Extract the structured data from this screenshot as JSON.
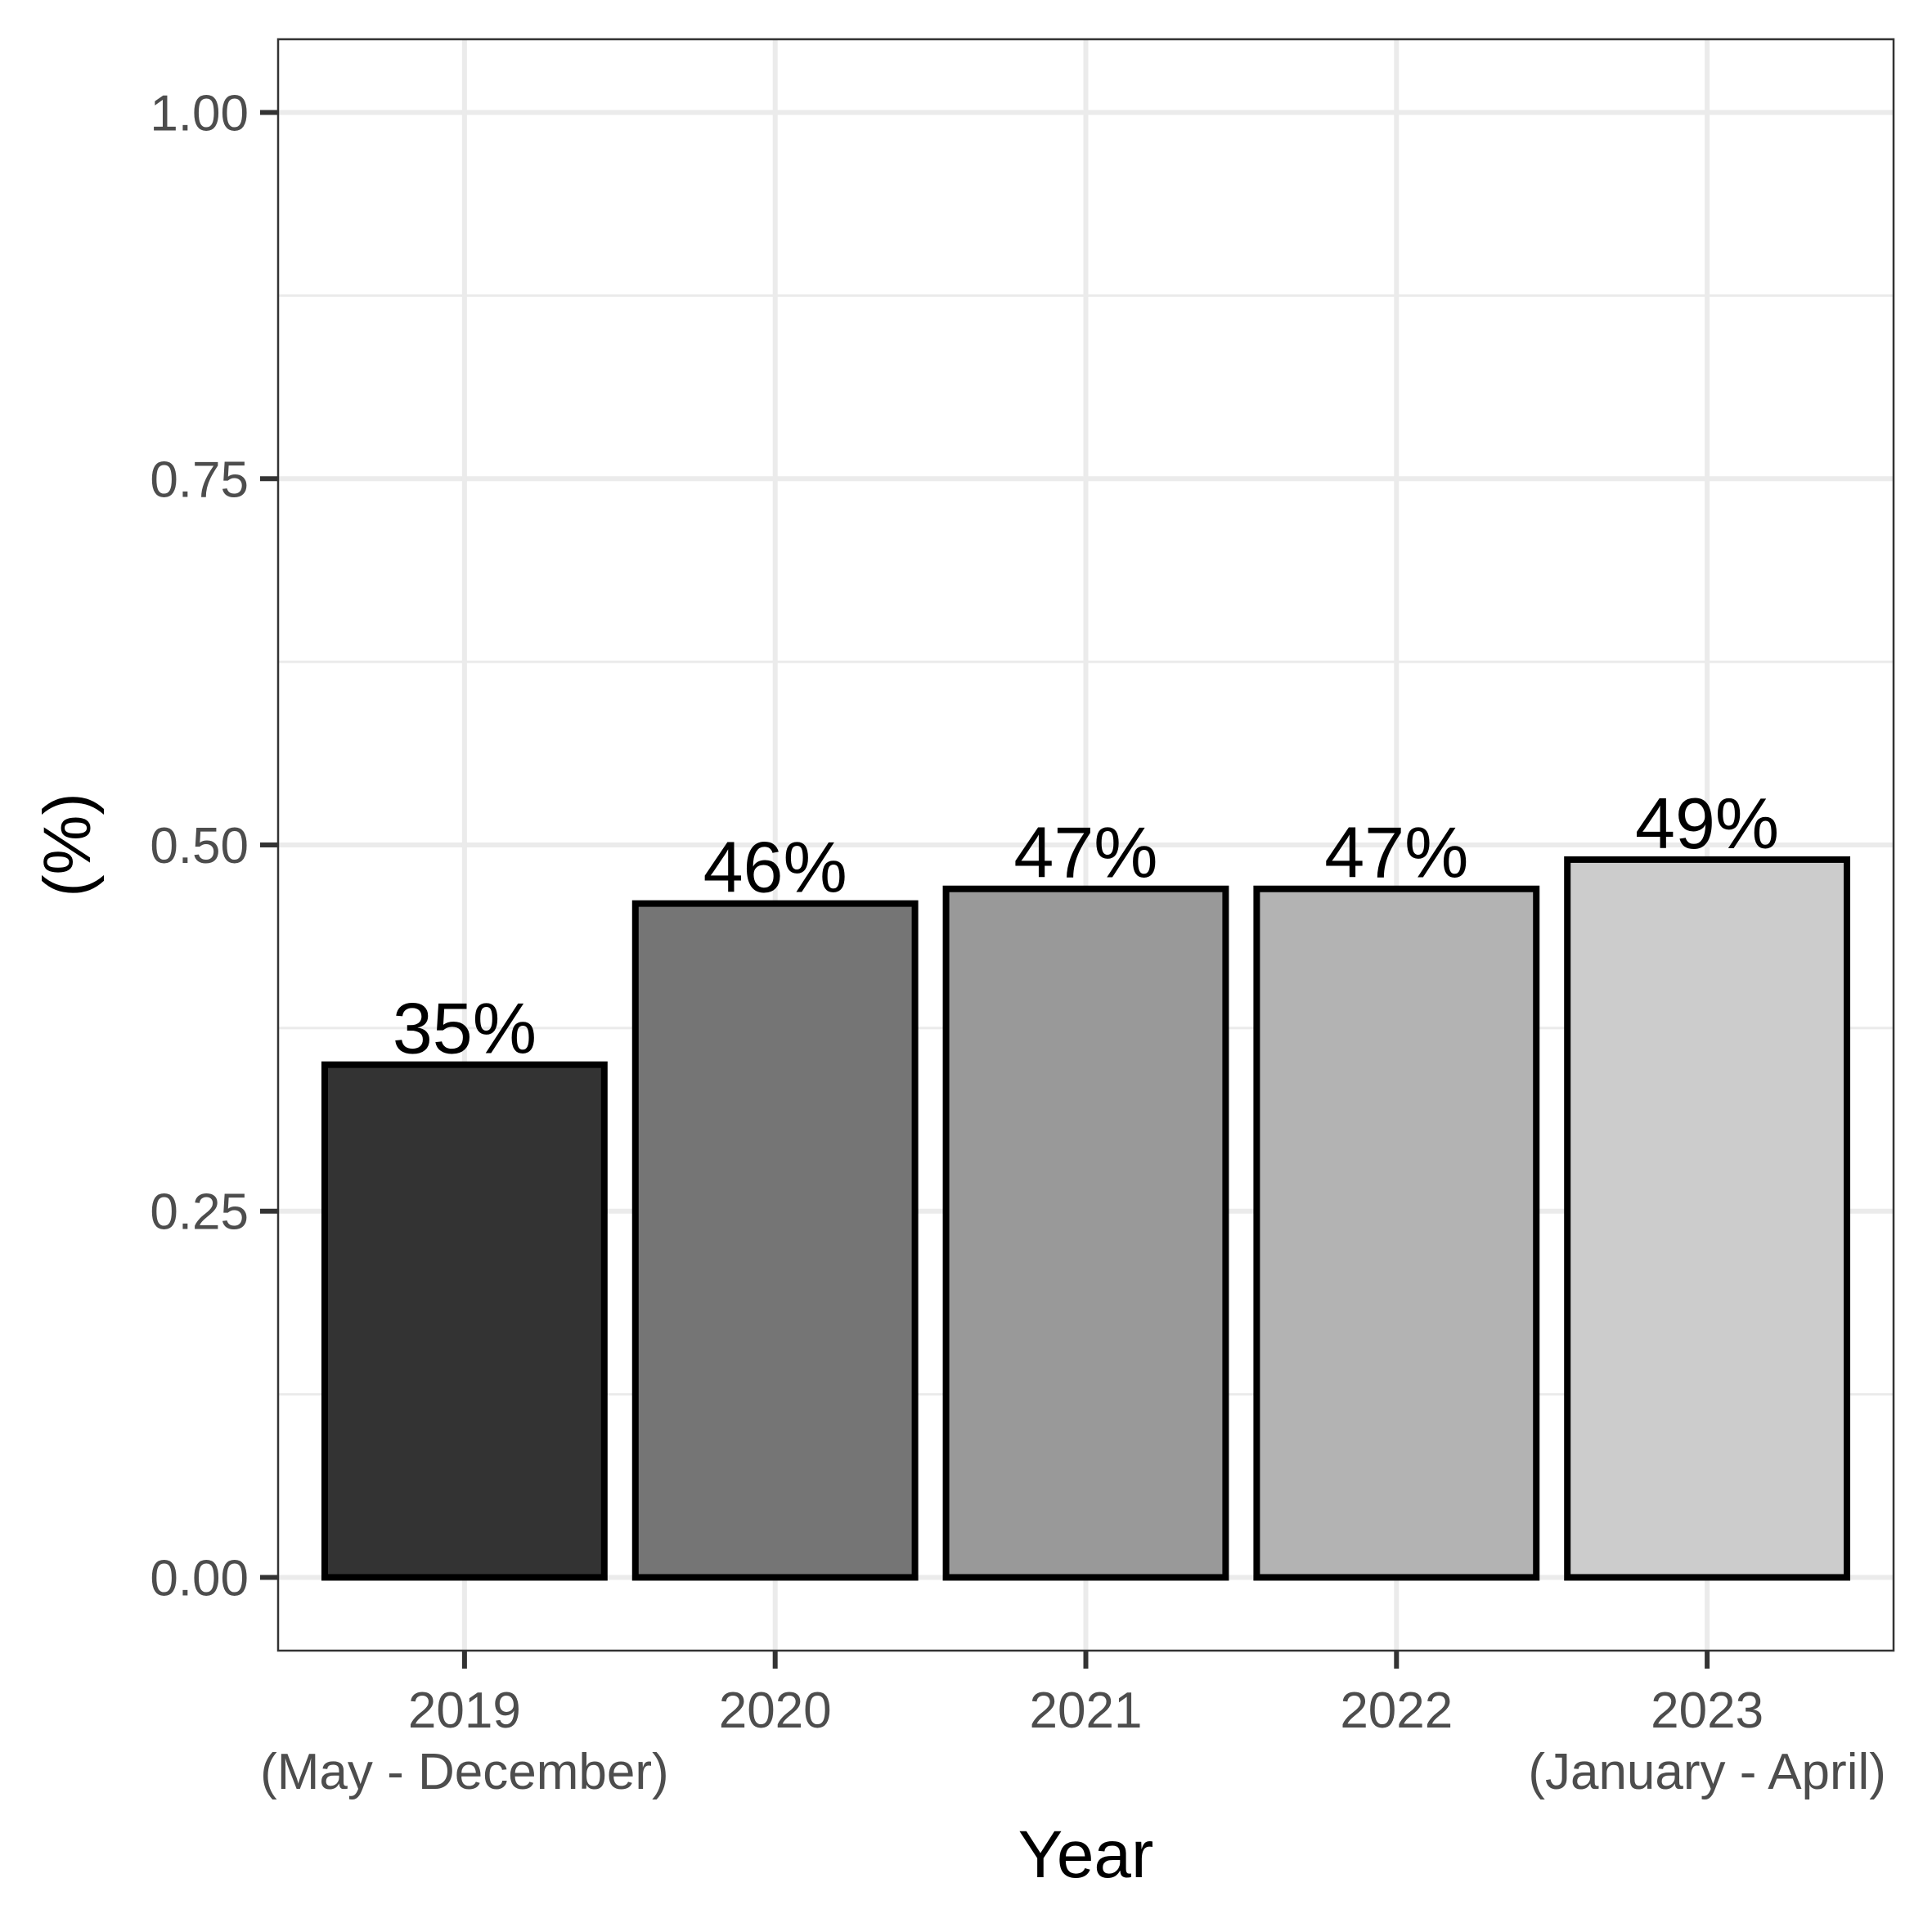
{
  "chart_data": {
    "type": "bar",
    "title": "",
    "xlabel": "Year",
    "ylabel": "(%)",
    "categories": [
      {
        "line1": "2019",
        "line2": "(May - December)"
      },
      {
        "line1": "2020",
        "line2": ""
      },
      {
        "line1": "2021",
        "line2": ""
      },
      {
        "line1": "2022",
        "line2": ""
      },
      {
        "line1": "2023",
        "line2": "(January - April)"
      }
    ],
    "values": [
      0.35,
      0.46,
      0.47,
      0.47,
      0.49
    ],
    "data_labels": [
      "35%",
      "46%",
      "47%",
      "47%",
      "49%"
    ],
    "bar_colors": [
      "#333333",
      "#757575",
      "#999999",
      "#b3b3b3",
      "#cccccc"
    ],
    "bar_outline_color": "#000000",
    "yticks": [
      0.0,
      0.25,
      0.5,
      0.75,
      1.0
    ],
    "ytick_labels": [
      "0.00",
      "0.25",
      "0.50",
      "0.75",
      "1.00"
    ],
    "ylim": [
      -0.05,
      1.05
    ],
    "grid": true,
    "legend": "none"
  }
}
